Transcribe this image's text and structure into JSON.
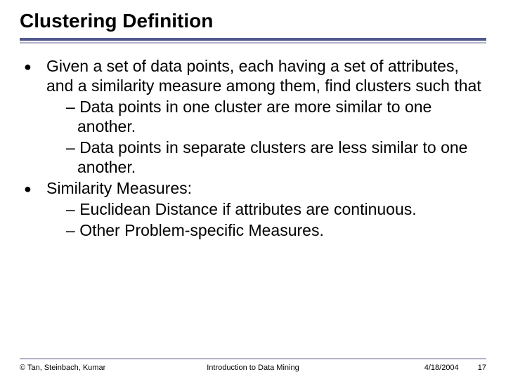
{
  "title": "Clustering Definition",
  "colors": {
    "rule_top": "#525a8d",
    "rule_bottom": "#b2b2c7",
    "text": "#000000",
    "background": "#ffffff"
  },
  "bullets": [
    {
      "text": "Given a set of data points, each having a set of attributes, and a similarity measure among them, find clusters such that",
      "subs": [
        "Data points in one cluster are more similar to one another.",
        "Data points in separate clusters are less similar to one another."
      ]
    },
    {
      "text": "Similarity Measures:",
      "subs": [
        "Euclidean Distance if attributes are continuous.",
        "Other Problem-specific Measures."
      ]
    }
  ],
  "footer": {
    "left": "© Tan, Steinbach, Kumar",
    "center": "Introduction to Data Mining",
    "date": "4/18/2004",
    "page": "17"
  },
  "typography": {
    "title_fontsize": 28,
    "body_fontsize": 23,
    "footer_fontsize": 11
  }
}
